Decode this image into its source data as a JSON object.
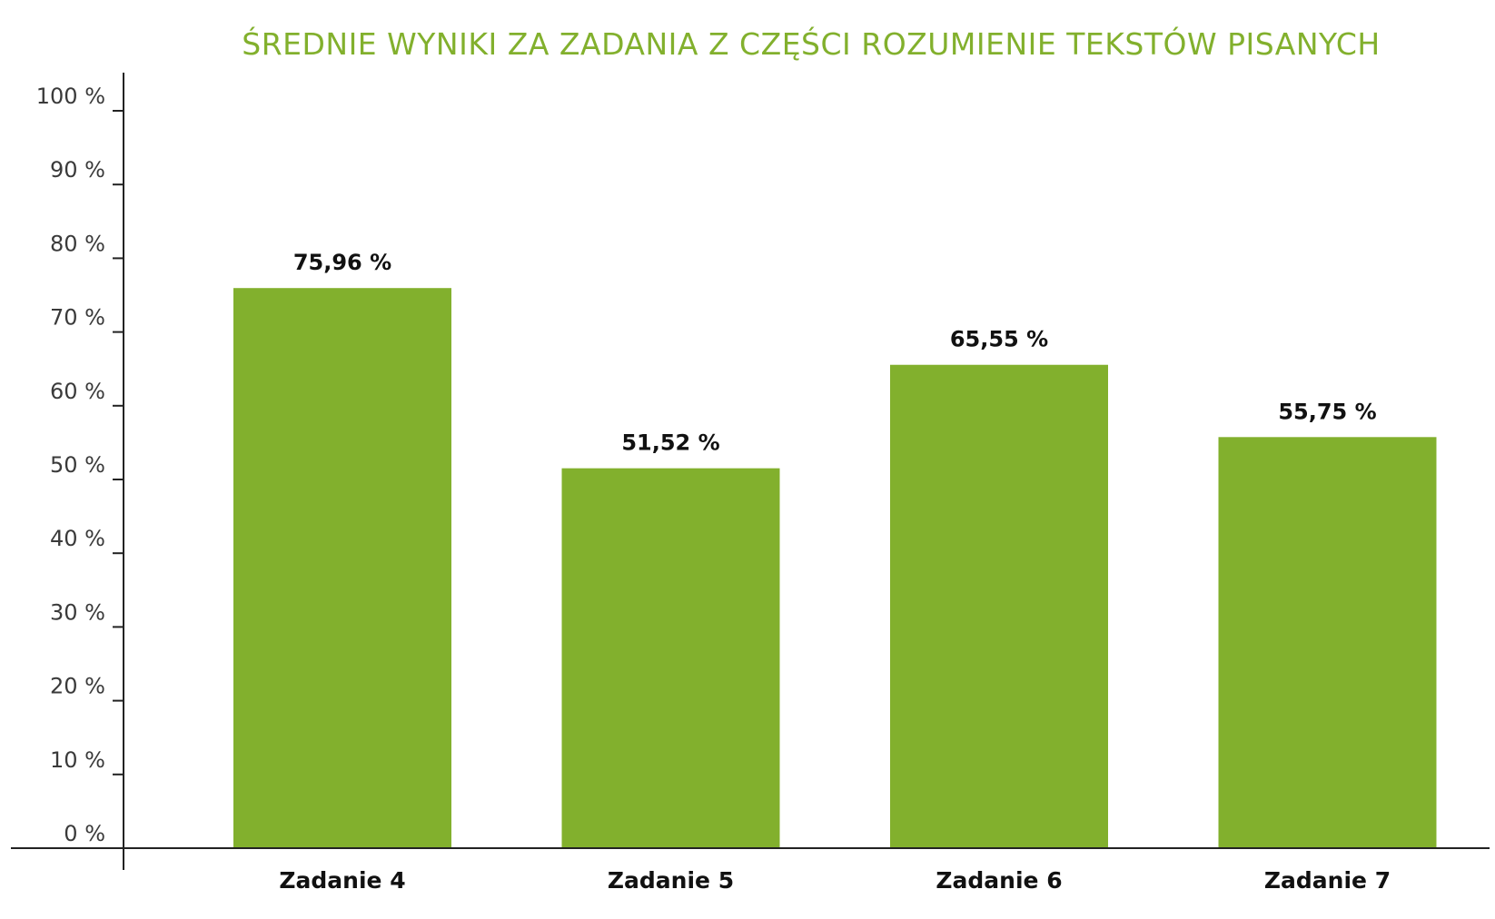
{
  "chart_data": {
    "type": "bar",
    "title": "ŚREDNIE WYNIKI ZA ZADANIA Z CZĘŚCI ROZUMIENIE TEKSTÓW PISANYCH",
    "categories": [
      "Zadanie 4",
      "Zadanie 5",
      "Zadanie 6",
      "Zadanie 7"
    ],
    "values": [
      75.96,
      51.52,
      65.55,
      55.75
    ],
    "data_labels": [
      "75,96 %",
      "51,52 %",
      "65,55 %",
      "55,75 %"
    ],
    "ylim": [
      0,
      100
    ],
    "yticks": [
      0,
      10,
      20,
      30,
      40,
      50,
      60,
      70,
      80,
      90,
      100
    ],
    "ytick_labels": [
      "0 %",
      "10 %",
      "20 %",
      "30 %",
      "40 %",
      "50 %",
      "60 %",
      "70 %",
      "80 %",
      "90 %",
      "100 %"
    ],
    "xlabel": "",
    "ylabel": "",
    "grid": false,
    "legend": "none",
    "colors": {
      "bar": "#82b02d",
      "title": "#82b02d",
      "axis": "#222222"
    }
  }
}
